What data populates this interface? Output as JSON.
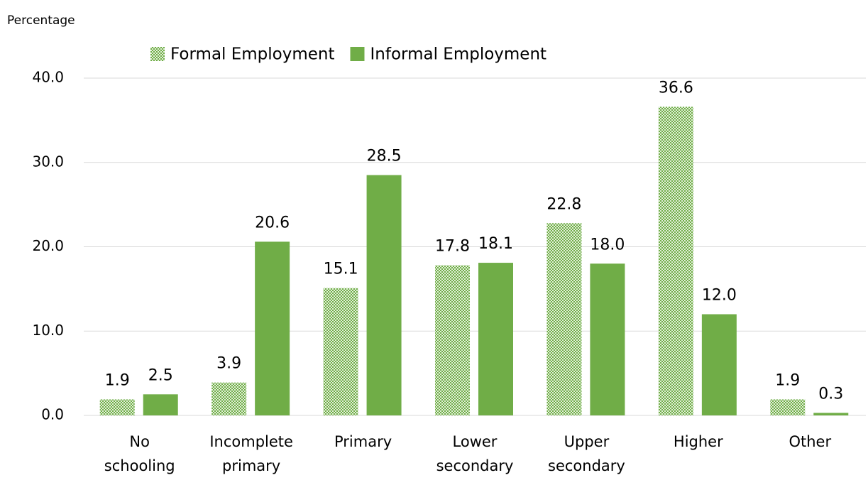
{
  "chart_data": {
    "type": "bar",
    "y_axis_label": "Percentage",
    "categories": [
      "No schooling",
      "Incomplete primary",
      "Primary",
      "Lower secondary",
      "Upper secondary",
      "Higher",
      "Other"
    ],
    "series": [
      {
        "name": "Formal Employment",
        "color": "#70ad47",
        "pattern": "checker",
        "values": [
          1.9,
          3.9,
          15.1,
          17.8,
          22.8,
          36.6,
          1.9
        ],
        "value_labels": [
          "1.9",
          "3.9",
          "15.1",
          "17.8",
          "22.8",
          "36.6",
          "1.9"
        ]
      },
      {
        "name": "Informal Employment",
        "color": "#70ad47",
        "values": [
          2.5,
          20.6,
          28.5,
          18.1,
          18.0,
          12.0,
          0.3
        ],
        "value_labels": [
          "2.5",
          "20.6",
          "28.5",
          "18.1",
          "18.0",
          "12.0",
          "0.3"
        ]
      }
    ],
    "ylim": [
      0,
      40
    ],
    "yticks": [
      {
        "value": 0,
        "label": "0.0"
      },
      {
        "value": 10,
        "label": "10.0"
      },
      {
        "value": 20,
        "label": "20.0"
      },
      {
        "value": 30,
        "label": "30.0"
      },
      {
        "value": 40,
        "label": "40.0"
      }
    ],
    "grid": true,
    "legend": "top"
  }
}
